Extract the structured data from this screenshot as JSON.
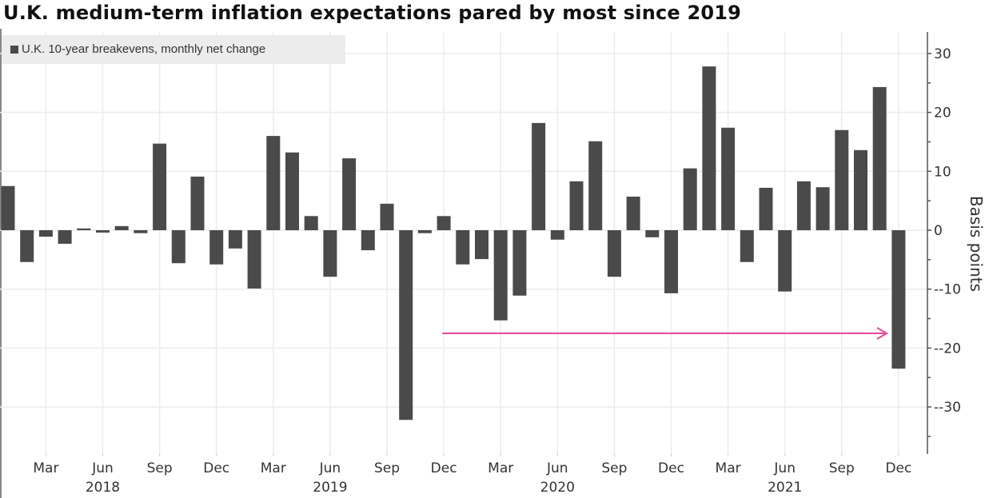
{
  "chart_data": {
    "type": "bar",
    "title": "U.K. medium-term inflation expectations pared by most since 2019",
    "legend": [
      {
        "name": "U.K. 10-year breakevens, monthly net change",
        "color": "#4a4a4a"
      }
    ],
    "legend_position": "top-left",
    "xlabel": "",
    "ylabel": "Basis points",
    "ylim": [
      -38,
      34
    ],
    "yticks": [
      30,
      20,
      10,
      0,
      -10,
      -20,
      -30
    ],
    "ytick_labels": [
      "30",
      "20",
      "10",
      "0",
      "-10",
      "-20",
      "-30"
    ],
    "y_axis_side": "right",
    "grid": true,
    "x_tick_labels": [
      {
        "index": 2,
        "label": "Mar"
      },
      {
        "index": 5,
        "label": "Jun"
      },
      {
        "index": 8,
        "label": "Sep"
      },
      {
        "index": 11,
        "label": "Dec"
      },
      {
        "index": 14,
        "label": "Mar"
      },
      {
        "index": 17,
        "label": "Jun"
      },
      {
        "index": 20,
        "label": "Sep"
      },
      {
        "index": 23,
        "label": "Dec"
      },
      {
        "index": 26,
        "label": "Mar"
      },
      {
        "index": 29,
        "label": "Jun"
      },
      {
        "index": 32,
        "label": "Sep"
      },
      {
        "index": 35,
        "label": "Dec"
      },
      {
        "index": 38,
        "label": "Mar"
      },
      {
        "index": 41,
        "label": "Jun"
      },
      {
        "index": 44,
        "label": "Sep"
      },
      {
        "index": 47,
        "label": "Dec"
      }
    ],
    "year_labels": [
      {
        "index": 5,
        "label": "2018"
      },
      {
        "index": 17,
        "label": "2019"
      },
      {
        "index": 29,
        "label": "2020"
      },
      {
        "index": 41,
        "label": "2021"
      }
    ],
    "categories": [
      "Jan 2018",
      "Feb 2018",
      "Mar 2018",
      "Apr 2018",
      "May 2018",
      "Jun 2018",
      "Jul 2018",
      "Aug 2018",
      "Sep 2018",
      "Oct 2018",
      "Nov 2018",
      "Dec 2018",
      "Jan 2019",
      "Feb 2019",
      "Mar 2019",
      "Apr 2019",
      "May 2019",
      "Jun 2019",
      "Jul 2019",
      "Aug 2019",
      "Sep 2019",
      "Oct 2019",
      "Nov 2019",
      "Dec 2019",
      "Jan 2020",
      "Feb 2020",
      "Mar 2020",
      "Apr 2020",
      "May 2020",
      "Jun 2020",
      "Jul 2020",
      "Aug 2020",
      "Sep 2020",
      "Oct 2020",
      "Nov 2020",
      "Dec 2020",
      "Jan 2021",
      "Feb 2021",
      "Mar 2021",
      "Apr 2021",
      "May 2021",
      "Jun 2021",
      "Jul 2021",
      "Aug 2021",
      "Sep 2021",
      "Oct 2021",
      "Nov 2021",
      "Dec 2021"
    ],
    "values": [
      7.5,
      -5.4,
      -1.1,
      -2.3,
      0.3,
      -0.4,
      0.7,
      -0.5,
      14.7,
      -5.6,
      9.1,
      -5.8,
      -3.1,
      -9.9,
      16.0,
      13.2,
      2.4,
      -7.9,
      12.2,
      -3.4,
      4.5,
      -32.2,
      -0.5,
      2.4,
      -5.8,
      -4.9,
      -15.3,
      -11.1,
      18.2,
      -1.6,
      8.3,
      15.1,
      -7.9,
      5.7,
      -1.2,
      -10.7,
      10.5,
      27.8,
      17.4,
      -5.4,
      7.2,
      -10.4,
      8.3,
      7.3,
      17.0,
      13.6,
      24.3,
      -23.5
    ],
    "annotation": {
      "type": "arrow",
      "from_index": 22.5,
      "to_index": 46.5,
      "y": -17.5,
      "color": "#e8489a",
      "description": "arrow pointing to Dec 2021 drop"
    }
  }
}
